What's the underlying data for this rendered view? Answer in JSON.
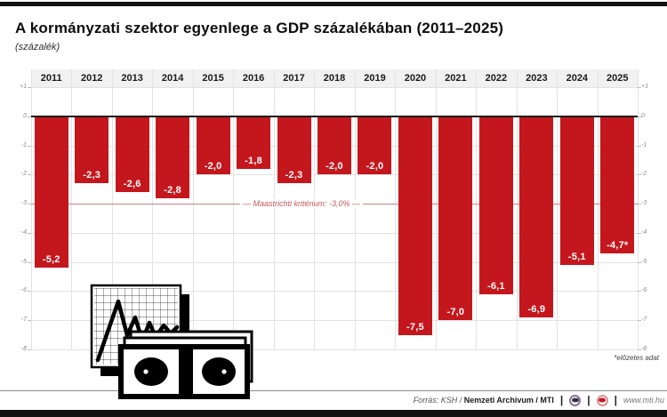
{
  "page": {
    "top_bar_color": "#111111",
    "background": "#ffffff"
  },
  "chart_data": {
    "type": "bar",
    "title": "A kormányzati szektor egyenlege a GDP százalékában (2011–2025)",
    "subtitle": "(százalék)",
    "categories": [
      "2011",
      "2012",
      "2013",
      "2014",
      "2015",
      "2016",
      "2017",
      "2018",
      "2019",
      "2020",
      "2021",
      "2022",
      "2023",
      "2024",
      "2025"
    ],
    "values": [
      -5.2,
      -2.3,
      -2.6,
      -2.8,
      -2.0,
      -1.8,
      -2.3,
      -2.0,
      -2.0,
      -7.5,
      -7.0,
      -6.1,
      -6.9,
      -5.1,
      -4.7
    ],
    "labels": [
      "-5,2",
      "-2,3",
      "-2,6",
      "-2,8",
      "-2,0",
      "-1,8",
      "-2,3",
      "-2,0",
      "-2,0",
      "-7,5",
      "-7,0",
      "-6,1",
      "-6,9",
      "-5,1",
      "-4,7*"
    ],
    "ylim": [
      -8,
      1
    ],
    "yticks": [
      "+1",
      "0",
      "-1",
      "-2",
      "-3",
      "-4",
      "-5",
      "-6",
      "-7",
      "-8"
    ],
    "ytick_values": [
      1,
      0,
      -1,
      -2,
      -3,
      -4,
      -5,
      -6,
      -7,
      -8
    ],
    "grid": true,
    "bar_color": "#c4171d",
    "value_label_color": "#ffffff",
    "reference_line": {
      "value": -3.0,
      "label": "Maastrichti kritérium: -3,0%",
      "display": "—   Maastrichti kritérium: -3,0%   —",
      "color": "#d08286",
      "label_color": "#c5575c"
    },
    "footnote": "*előzetes adat"
  },
  "footer": {
    "source_italic": "Forrás: KSH /",
    "source_bold": "Nemzeti Archivum / MTI",
    "separator": "|",
    "logos": [
      {
        "icon": "mtva-logo-icon"
      },
      {
        "icon": "mti-logo-icon"
      }
    ],
    "website": "www.mti.hu"
  }
}
